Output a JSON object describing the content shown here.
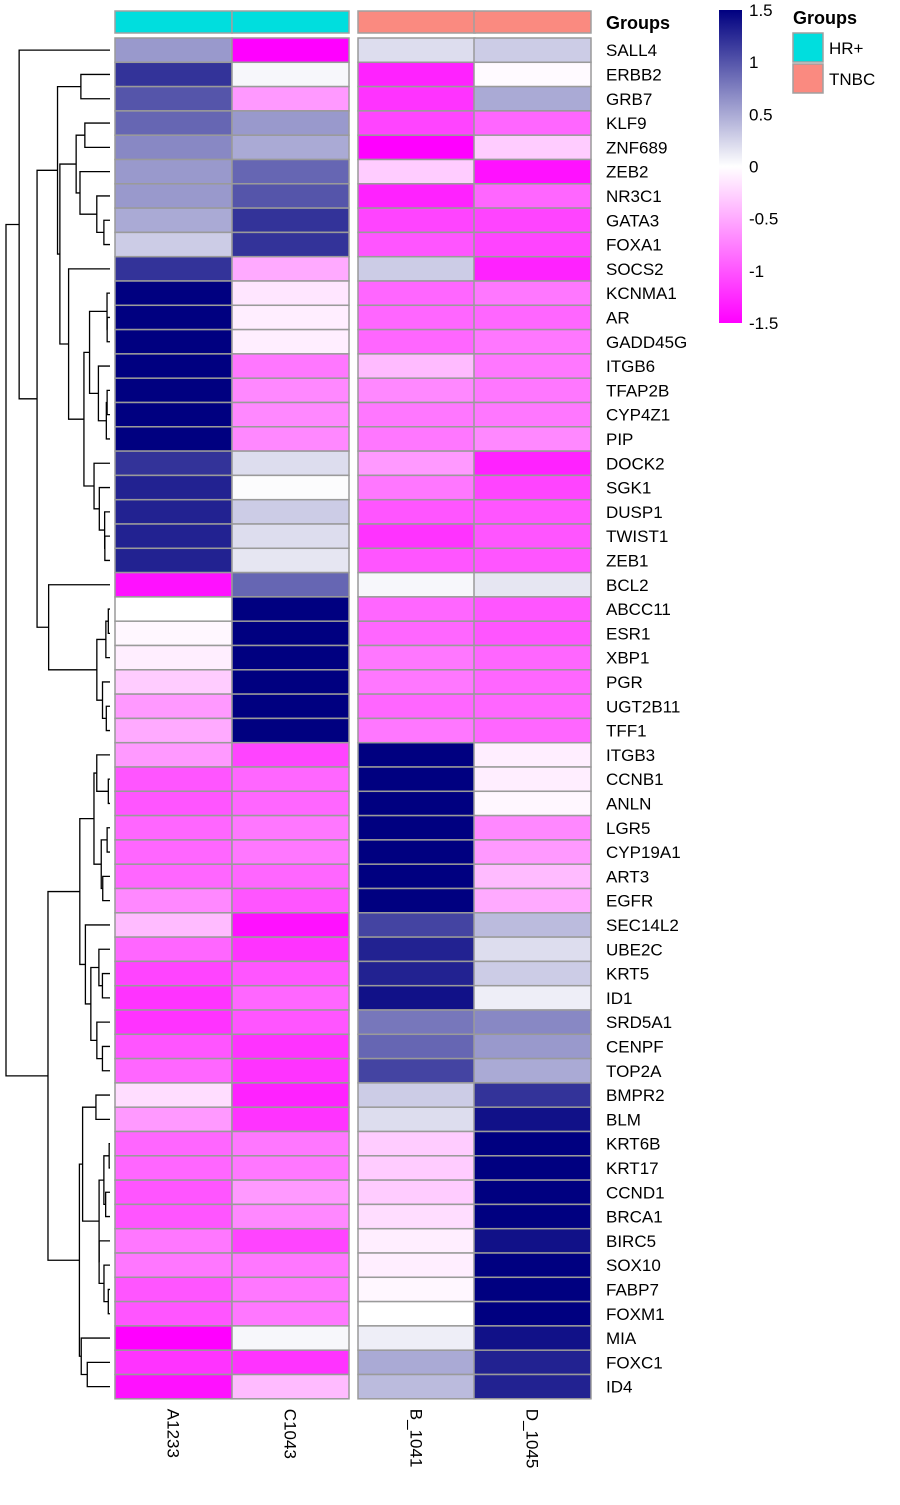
{
  "chart_data": {
    "type": "heatmap",
    "title": "",
    "samples": [
      "A1233",
      "C1043",
      "B_1041",
      "D_1045"
    ],
    "sample_groups": [
      "HR+",
      "HR+",
      "TNBC",
      "TNBC"
    ],
    "genes": [
      "SALL4",
      "ERBB2",
      "GRB7",
      "KLF9",
      "ZNF689",
      "ZEB2",
      "NR3C1",
      "GATA3",
      "FOXA1",
      "SOCS2",
      "KCNMA1",
      "AR",
      "GADD45G",
      "ITGB6",
      "TFAP2B",
      "CYP4Z1",
      "PIP",
      "DOCK2",
      "SGK1",
      "DUSP1",
      "TWIST1",
      "ZEB1",
      "BCL2",
      "ABCC11",
      "ESR1",
      "XBP1",
      "PGR",
      "UGT2B11",
      "TFF1",
      "ITGB3",
      "CCNB1",
      "ANLN",
      "LGR5",
      "CYP19A1",
      "ART3",
      "EGFR",
      "SEC14L2",
      "UBE2C",
      "KRT5",
      "ID1",
      "SRD5A1",
      "CENPF",
      "TOP2A",
      "BMPR2",
      "BLM",
      "KRT6B",
      "KRT17",
      "CCND1",
      "BRCA1",
      "BIRC5",
      "SOX10",
      "FABP7",
      "FOXM1",
      "MIA",
      "FOXC1",
      "ID4"
    ],
    "values": [
      [
        0.6,
        -1.5,
        0.2,
        0.3
      ],
      [
        1.2,
        0.05,
        -1.3,
        -0.03
      ],
      [
        1.0,
        -0.6,
        -1.2,
        0.5
      ],
      [
        0.9,
        0.6,
        -1.1,
        -0.9
      ],
      [
        0.7,
        0.5,
        -1.5,
        -0.3
      ],
      [
        0.6,
        0.9,
        -0.3,
        -1.4
      ],
      [
        0.6,
        1.0,
        -1.3,
        -0.9
      ],
      [
        0.5,
        1.2,
        -1.1,
        -1.1
      ],
      [
        0.3,
        1.2,
        -1.0,
        -1.1
      ],
      [
        1.2,
        -0.5,
        0.3,
        -1.3
      ],
      [
        1.5,
        -0.15,
        -0.9,
        -0.8
      ],
      [
        1.5,
        -0.1,
        -0.9,
        -0.9
      ],
      [
        1.5,
        -0.1,
        -0.9,
        -0.8
      ],
      [
        1.5,
        -0.8,
        -0.4,
        -0.8
      ],
      [
        1.5,
        -0.7,
        -0.7,
        -0.8
      ],
      [
        1.5,
        -0.7,
        -0.8,
        -0.8
      ],
      [
        1.5,
        -0.7,
        -0.8,
        -0.7
      ],
      [
        1.2,
        0.2,
        -0.6,
        -1.3
      ],
      [
        1.3,
        0.02,
        -0.8,
        -1.1
      ],
      [
        1.3,
        0.3,
        -1.0,
        -1.0
      ],
      [
        1.3,
        0.2,
        -1.2,
        -1.0
      ],
      [
        1.3,
        0.15,
        -1.0,
        -1.0
      ],
      [
        -1.4,
        0.9,
        0.05,
        0.15
      ],
      [
        0.0,
        1.5,
        -0.9,
        -1.0
      ],
      [
        -0.05,
        1.5,
        -0.9,
        -1.0
      ],
      [
        -0.1,
        1.5,
        -0.8,
        -0.9
      ],
      [
        -0.3,
        1.5,
        -0.8,
        -0.9
      ],
      [
        -0.6,
        1.5,
        -0.9,
        -0.9
      ],
      [
        -0.5,
        1.5,
        -0.8,
        -0.9
      ],
      [
        -0.6,
        -1.1,
        1.5,
        -0.1
      ],
      [
        -1.0,
        -0.9,
        1.5,
        -0.1
      ],
      [
        -1.0,
        -0.9,
        1.5,
        -0.05
      ],
      [
        -0.9,
        -0.8,
        1.5,
        -0.7
      ],
      [
        -0.9,
        -0.8,
        1.5,
        -0.6
      ],
      [
        -0.9,
        -0.9,
        1.5,
        -0.4
      ],
      [
        -0.7,
        -1.0,
        1.5,
        -0.5
      ],
      [
        -0.4,
        -1.4,
        1.1,
        0.4
      ],
      [
        -0.9,
        -1.2,
        1.3,
        0.2
      ],
      [
        -1.1,
        -1.0,
        1.3,
        0.3
      ],
      [
        -1.2,
        -0.9,
        1.4,
        0.1
      ],
      [
        -1.2,
        -1.0,
        0.8,
        0.7
      ],
      [
        -1.0,
        -1.2,
        0.9,
        0.6
      ],
      [
        -0.9,
        -1.2,
        1.1,
        0.5
      ],
      [
        -0.2,
        -1.3,
        0.3,
        1.2
      ],
      [
        -0.6,
        -1.2,
        0.2,
        1.4
      ],
      [
        -0.9,
        -0.8,
        -0.3,
        1.5
      ],
      [
        -0.9,
        -0.8,
        -0.3,
        1.5
      ],
      [
        -1.0,
        -0.6,
        -0.3,
        1.5
      ],
      [
        -1.0,
        -0.7,
        -0.2,
        1.5
      ],
      [
        -0.8,
        -1.1,
        -0.1,
        1.4
      ],
      [
        -0.8,
        -0.8,
        -0.1,
        1.5
      ],
      [
        -1.0,
        -0.8,
        -0.05,
        1.5
      ],
      [
        -1.0,
        -0.8,
        0.0,
        1.5
      ],
      [
        -1.5,
        0.05,
        0.1,
        1.4
      ],
      [
        -1.2,
        -1.2,
        0.5,
        1.3
      ],
      [
        -1.4,
        -0.4,
        0.4,
        1.3
      ]
    ],
    "color_scale": {
      "min": -1.5,
      "mid": 0,
      "max": 1.5,
      "low_color": "#ff00ff",
      "mid_color": "#ffffff",
      "high_color": "#000080",
      "ticks": [
        "1.5",
        "1",
        "0.5",
        "0",
        "-0.5",
        "-1",
        "-1.5"
      ]
    },
    "annotation": {
      "title": "Groups",
      "legend_title": "Groups",
      "levels": [
        {
          "name": "HR+",
          "color": "#00dede"
        },
        {
          "name": "TNBC",
          "color": "#fa8a80"
        }
      ]
    },
    "legend_placement": "top-right",
    "row_dendrogram": true,
    "column_gap_after_index": 1
  }
}
